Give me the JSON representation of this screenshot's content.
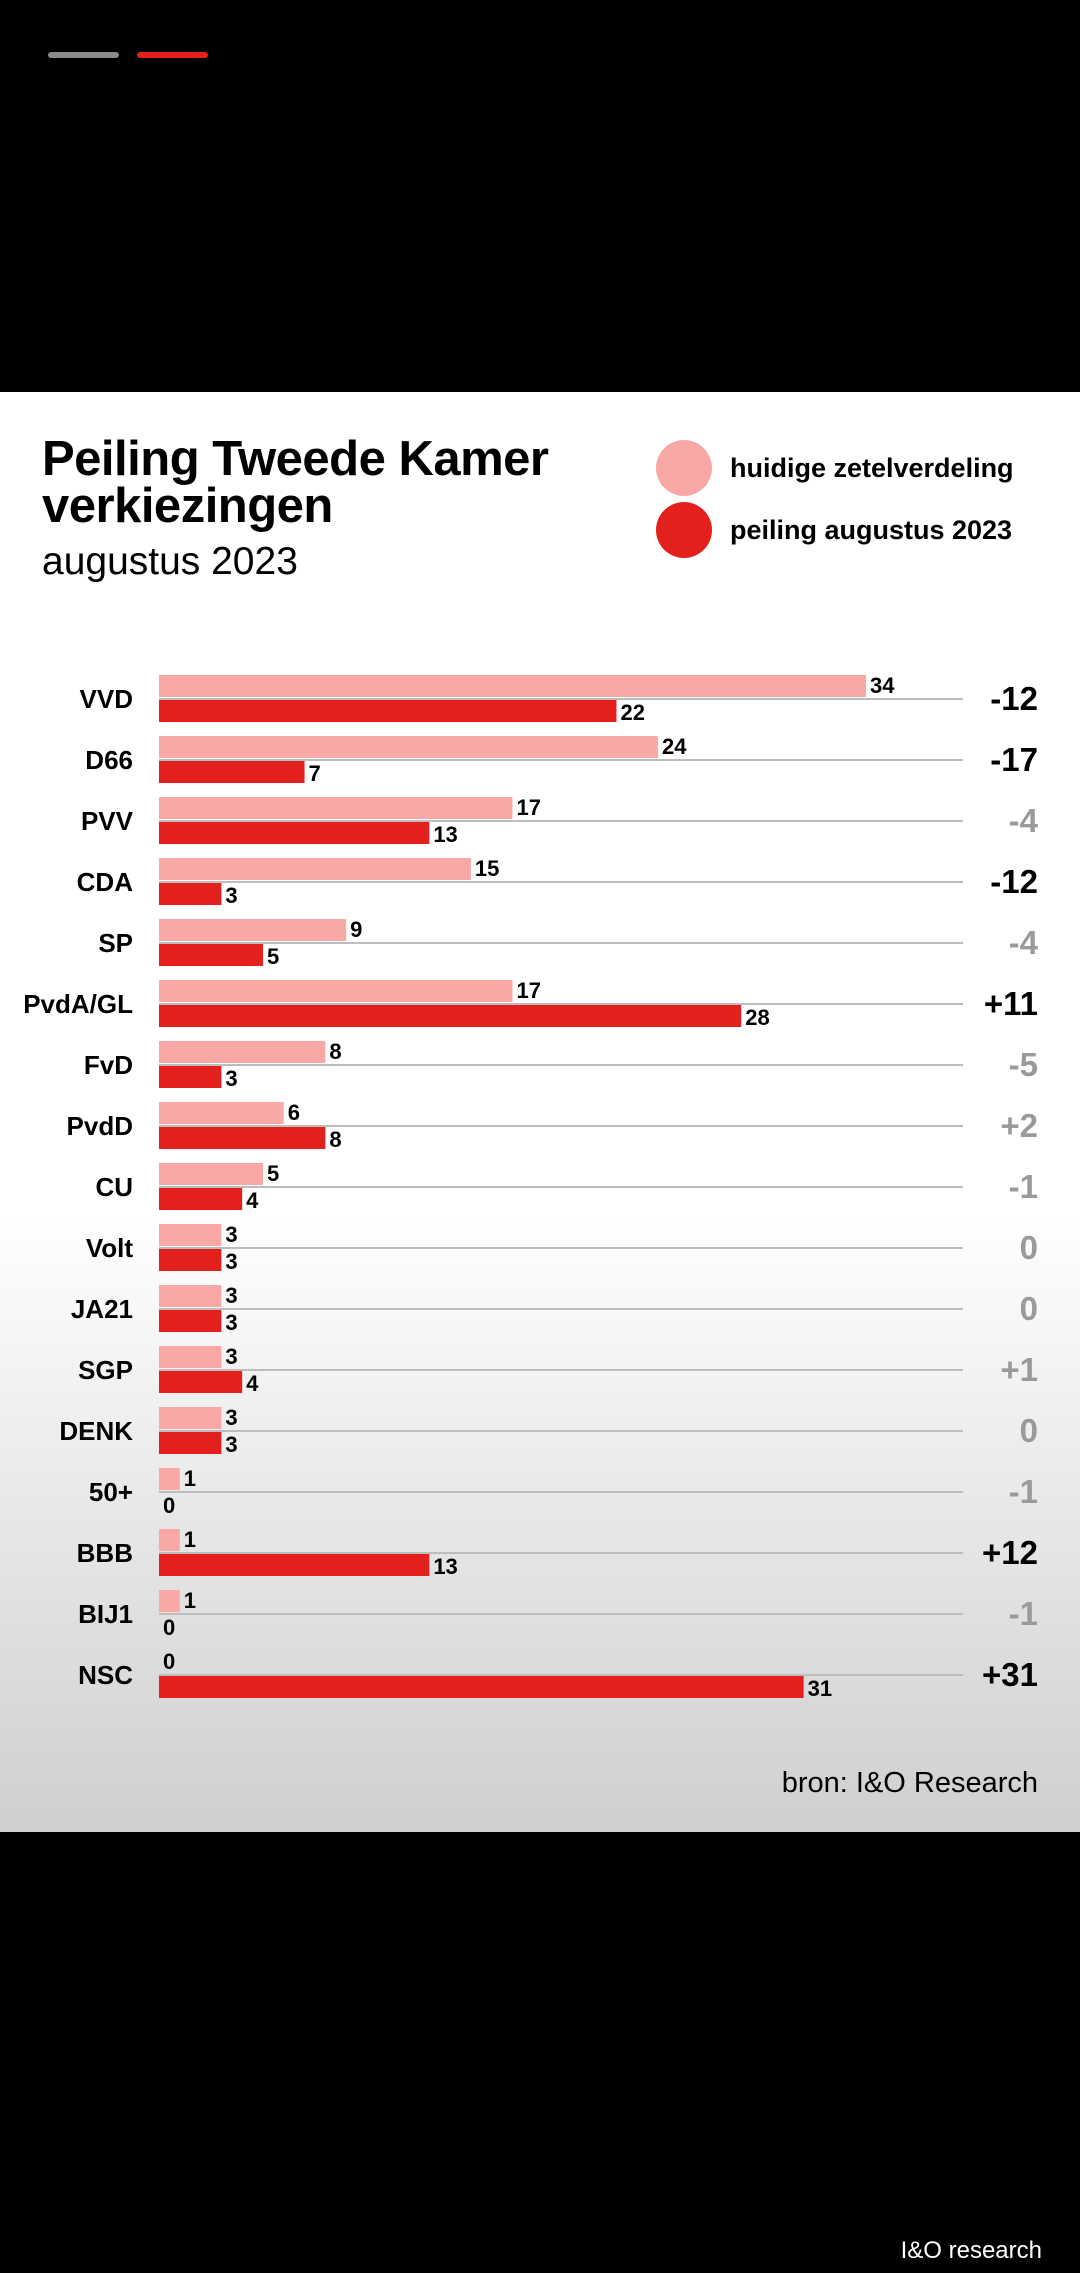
{
  "progress": [
    {
      "color": "#8a8a8a"
    },
    {
      "color": "#e3201b"
    }
  ],
  "header": {
    "title_line1": "Peiling Tweede Kamer",
    "title_line2": "verkiezingen",
    "subtitle": "augustus 2023"
  },
  "legend": [
    {
      "label": "huidige zetelverdeling",
      "color": "#f9a8a5"
    },
    {
      "label": "peiling augustus 2023",
      "color": "#e3201b"
    }
  ],
  "chart_data": {
    "type": "bar",
    "orientation": "horizontal",
    "grid": false,
    "legend_position": "top-right",
    "categories": [
      "VVD",
      "D66",
      "PVV",
      "CDA",
      "SP",
      "PvdA/GL",
      "FvD",
      "PvdD",
      "CU",
      "Volt",
      "JA21",
      "SGP",
      "DENK",
      "50+",
      "BBB",
      "BIJ1",
      "NSC"
    ],
    "series": [
      {
        "name": "huidige zetelverdeling",
        "color": "#f9a8a5",
        "values": [
          34,
          24,
          17,
          15,
          9,
          17,
          8,
          6,
          5,
          3,
          3,
          3,
          3,
          1,
          1,
          1,
          0
        ]
      },
      {
        "name": "peiling augustus 2023",
        "color": "#e3201b",
        "values": [
          22,
          7,
          13,
          3,
          5,
          28,
          3,
          8,
          4,
          3,
          3,
          4,
          3,
          0,
          13,
          0,
          31
        ]
      }
    ],
    "difference": [
      "-12",
      "-17",
      "-4",
      "-12",
      "-4",
      "+11",
      "-5",
      "+2",
      "-1",
      "0",
      "0",
      "+1",
      "0",
      "-1",
      "+12",
      "-1",
      "+31"
    ],
    "difference_emphasis": [
      true,
      true,
      false,
      true,
      false,
      true,
      false,
      false,
      false,
      false,
      false,
      false,
      false,
      false,
      true,
      false,
      true
    ],
    "xlim": [
      0,
      38
    ]
  },
  "source": "bron: I&O Research",
  "footer_brand": "I&O research"
}
